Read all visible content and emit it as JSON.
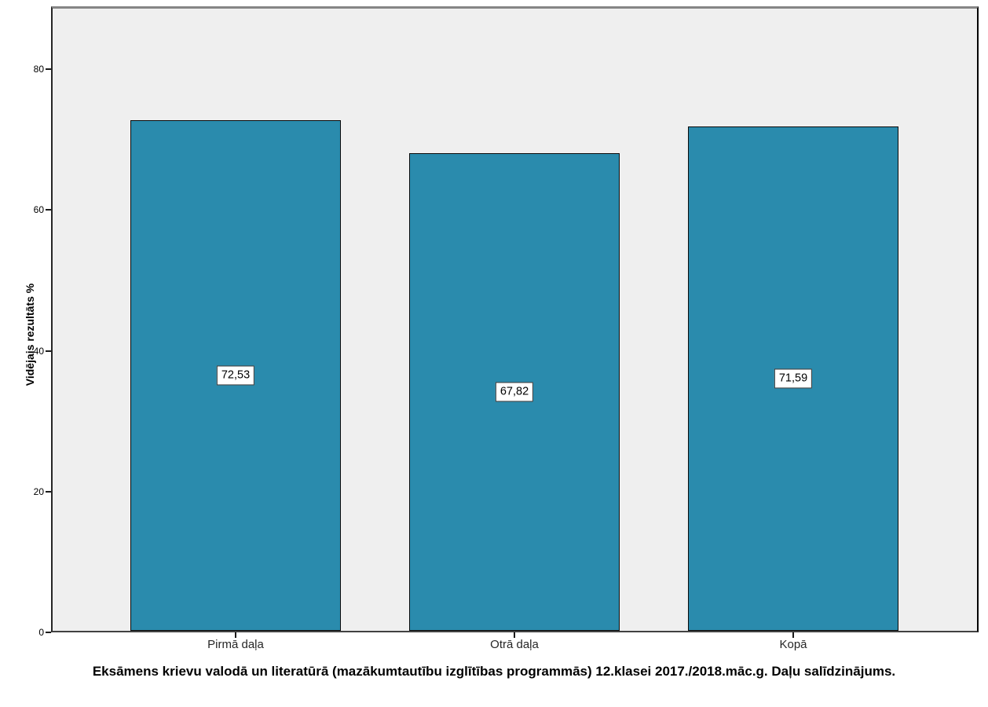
{
  "chart_data": {
    "type": "bar",
    "categories": [
      "Pirmā daļa",
      "Otrā daļa",
      "Kopā"
    ],
    "values": [
      72.53,
      67.82,
      71.59
    ],
    "value_labels": [
      "72,53",
      "67,82",
      "71,59"
    ],
    "title": "Eksāmens krievu valodā un literatūrā (mazākumtautību izglītības programmās) 12.klasei 2017./2018.māc.g. Daļu salīdzinājums.",
    "xlabel": "",
    "ylabel": "Vidējais rezultāts %",
    "ylim": [
      0,
      88.4
    ],
    "yticks": [
      0,
      20,
      40,
      60,
      80
    ],
    "ytick_labels": [
      "0",
      "20",
      "40",
      "60",
      "80"
    ],
    "grid": false,
    "legend": "none",
    "colors": {
      "bar_fill": "#2a8bad",
      "bar_border": "#0a0a0a",
      "plot_background": "#efefef",
      "axis": "#262626",
      "label_box_background": "#ffffff",
      "label_box_border": "#333333"
    }
  }
}
